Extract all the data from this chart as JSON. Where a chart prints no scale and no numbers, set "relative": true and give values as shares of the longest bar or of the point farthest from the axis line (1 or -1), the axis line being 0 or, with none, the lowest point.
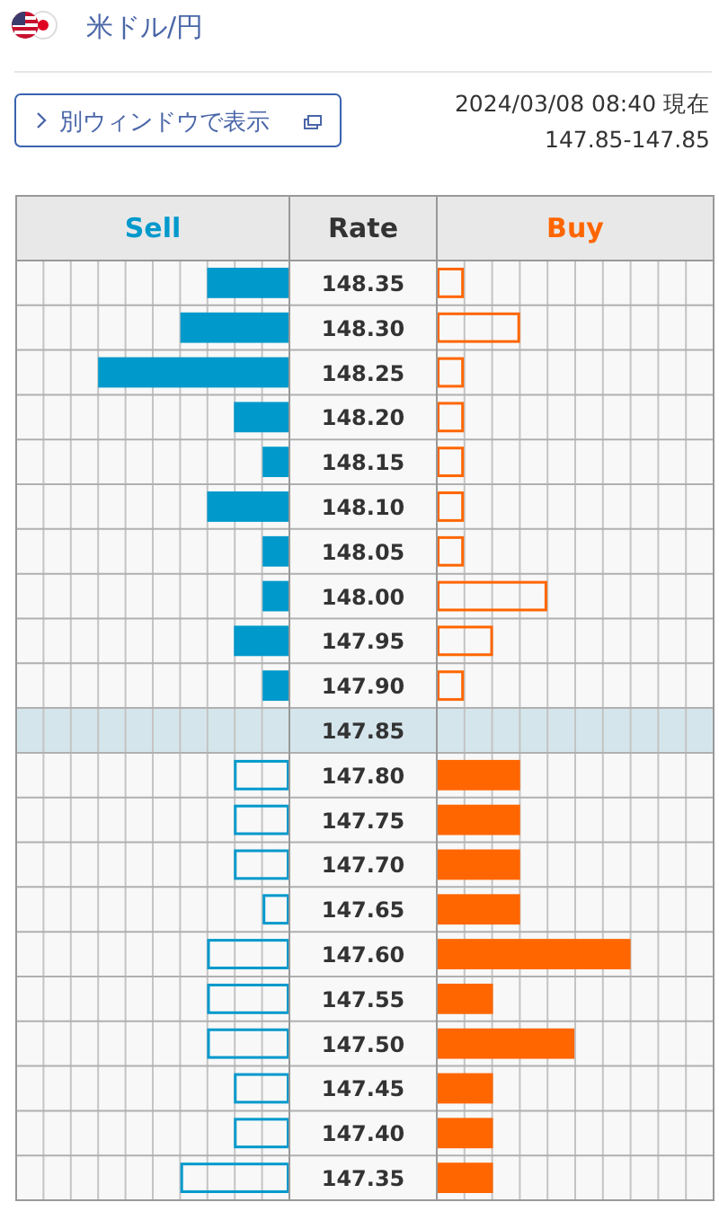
{
  "chart_data": [
    {
      "type": "bar",
      "orientation": "horizontal",
      "relative": true,
      "title": "米ドル/円",
      "ylabel": "Rate",
      "annotations": [
        "別ウィンドウで表示",
        "2024/03/08 08:40 現在",
        "147.85-147.85"
      ],
      "categories": [
        "148.35",
        "148.30",
        "148.25",
        "148.20",
        "148.15",
        "148.10",
        "148.05",
        "148.00",
        "147.95",
        "147.90",
        "147.85",
        "147.80",
        "147.75",
        "147.70",
        "147.65",
        "147.60",
        "147.55",
        "147.50",
        "147.45",
        "147.40",
        "147.35"
      ],
      "series": [
        {
          "name": "Sell",
          "color": "#0099cc",
          "values": [
            0.43,
            0.57,
            1,
            0.29,
            0.14,
            0.43,
            0.14,
            0.14,
            0.29,
            0.14,
            0,
            0.29,
            0.29,
            0.29,
            0.14,
            0.43,
            0.43,
            0.43,
            0.29,
            0.29,
            0.57
          ]
        }
      ],
      "bands": [
        {
          "axis": "y",
          "from": "147.85",
          "to": "147.85",
          "color": "#d4e6ec"
        }
      ],
      "grid": true
    },
    {
      "type": "bar",
      "orientation": "horizontal",
      "relative": true,
      "tick_labels": false,
      "categories": [
        "148.35",
        "148.30",
        "148.25",
        "148.20",
        "148.15",
        "148.10",
        "148.05",
        "148.00",
        "147.95",
        "147.90",
        "147.85",
        "147.80",
        "147.75",
        "147.70",
        "147.65",
        "147.60",
        "147.55",
        "147.50",
        "147.45",
        "147.40",
        "147.35"
      ],
      "series": [
        {
          "name": "Buy",
          "color": "#ff6600",
          "values": [
            0.14,
            0.43,
            0.14,
            0.14,
            0.14,
            0.14,
            0.14,
            0.57,
            0.29,
            0.14,
            0,
            0.43,
            0.43,
            0.43,
            0.43,
            1,
            0.29,
            0.71,
            0.29,
            0.29,
            0.29
          ]
        }
      ],
      "bands": [
        {
          "axis": "y",
          "from": "147.85",
          "to": "147.85",
          "color": "#d4e6ec"
        }
      ],
      "grid": true
    }
  ]
}
